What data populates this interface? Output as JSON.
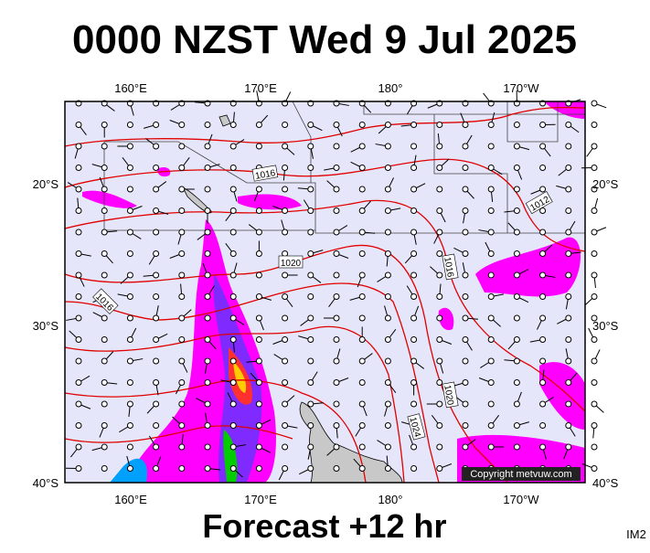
{
  "title": "0000 NZST Wed 9 Jul 2025",
  "longitude_labels": [
    "160°E",
    "170°E",
    "180°",
    "170°W"
  ],
  "latitude_labels": [
    "20°S",
    "30°S",
    "40°S"
  ],
  "isobar_labels": [
    1016,
    1012,
    1020,
    1016,
    1016,
    1020,
    1024
  ],
  "copyright": "Copyright metvuw.com",
  "footer": "Forecast +12 hr",
  "image_id": "IM2"
}
